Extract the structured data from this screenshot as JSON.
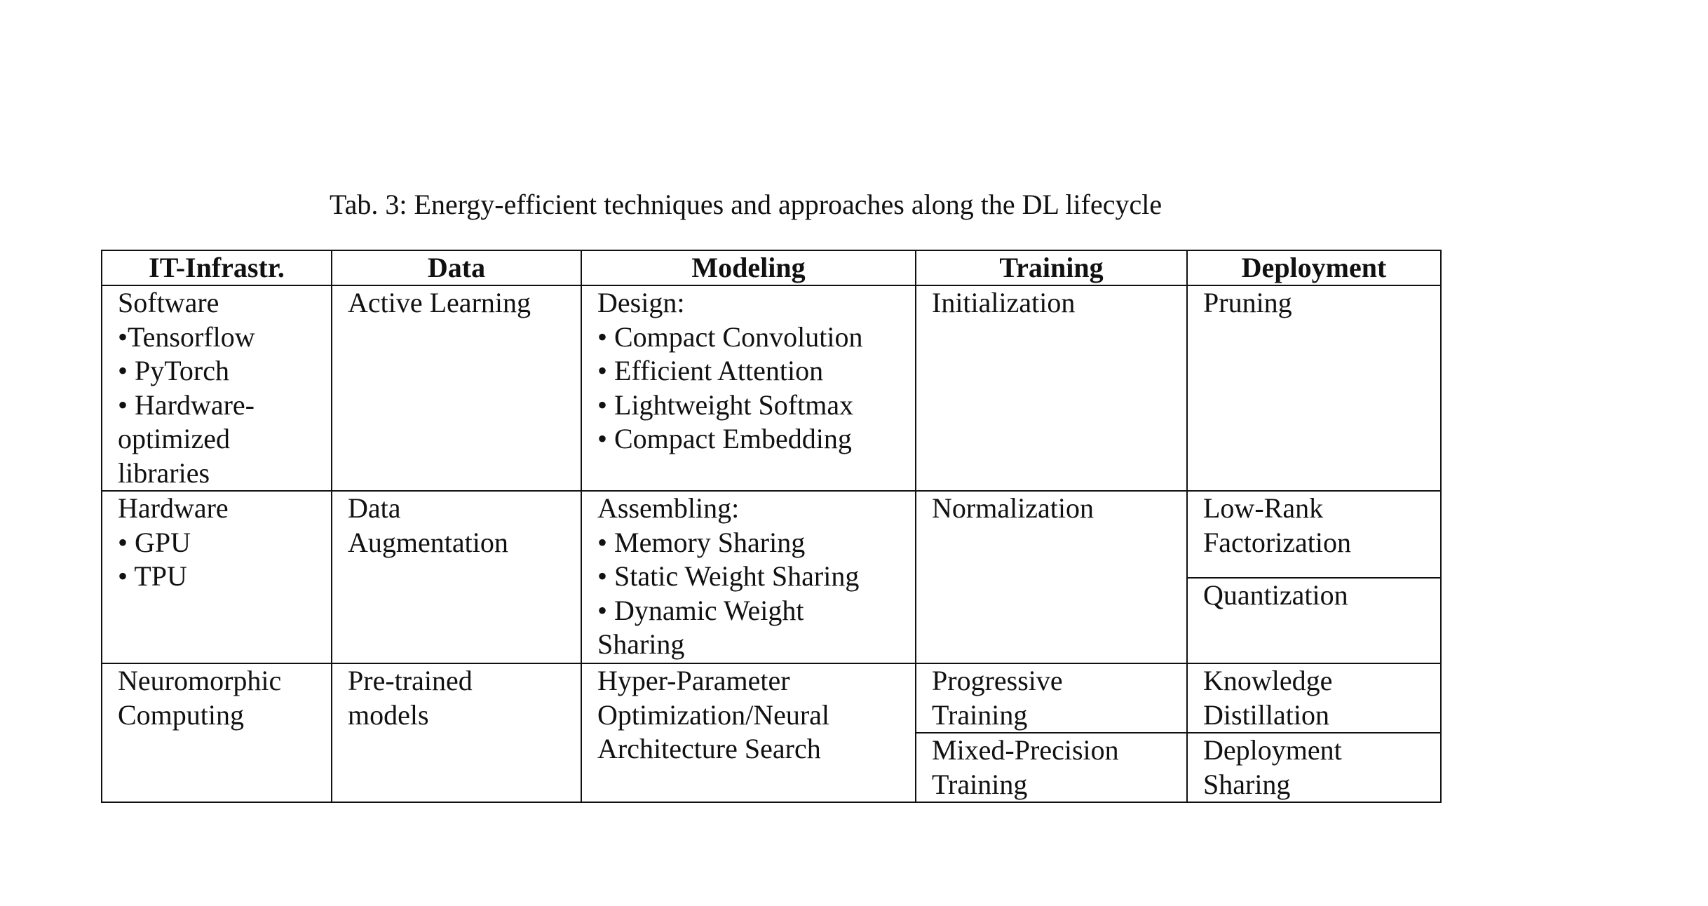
{
  "caption": "Tab. 3: Energy-efficient techniques and approaches along the DL lifecycle",
  "headers": [
    "IT-Infrastr.",
    "Data",
    "Modeling",
    "Training",
    "Deployment"
  ],
  "rows": {
    "software": {
      "infra": [
        "Software",
        "•Tensorflow",
        "• PyTorch",
        "• Hardware-",
        "optimized",
        "libraries"
      ],
      "data": [
        "Active Learning"
      ],
      "modeling": [
        "Design:",
        "• Compact Convolution",
        "• Efficient Attention",
        "• Lightweight Softmax",
        "• Compact Embedding"
      ],
      "training": [
        "Initialization"
      ],
      "deployment": [
        "Pruning"
      ]
    },
    "hardware": {
      "infra": [
        "Hardware",
        "• GPU",
        "• TPU"
      ],
      "data": [
        "Data",
        "Augmentation"
      ],
      "modeling": [
        "Assembling:",
        "• Memory Sharing",
        "• Static Weight Sharing",
        "• Dynamic Weight",
        "Sharing"
      ],
      "training": [
        "Normalization"
      ],
      "deployment_top": [
        "Low-Rank",
        "Factorization"
      ],
      "deployment_bottom": [
        "Quantization"
      ]
    },
    "neuromorphic": {
      "infra": [
        "Neuromorphic",
        "Computing"
      ],
      "data": [
        "Pre-trained",
        "models"
      ],
      "modeling": [
        "Hyper-Parameter",
        "Optimization/Neural",
        "Architecture Search"
      ],
      "training_top": [
        "Progressive",
        "Training"
      ],
      "training_bottom": [
        "Mixed-Precision",
        "Training"
      ],
      "deployment_top": [
        "Knowledge",
        "Distillation"
      ],
      "deployment_bottom": [
        "Deployment",
        "Sharing"
      ]
    }
  }
}
